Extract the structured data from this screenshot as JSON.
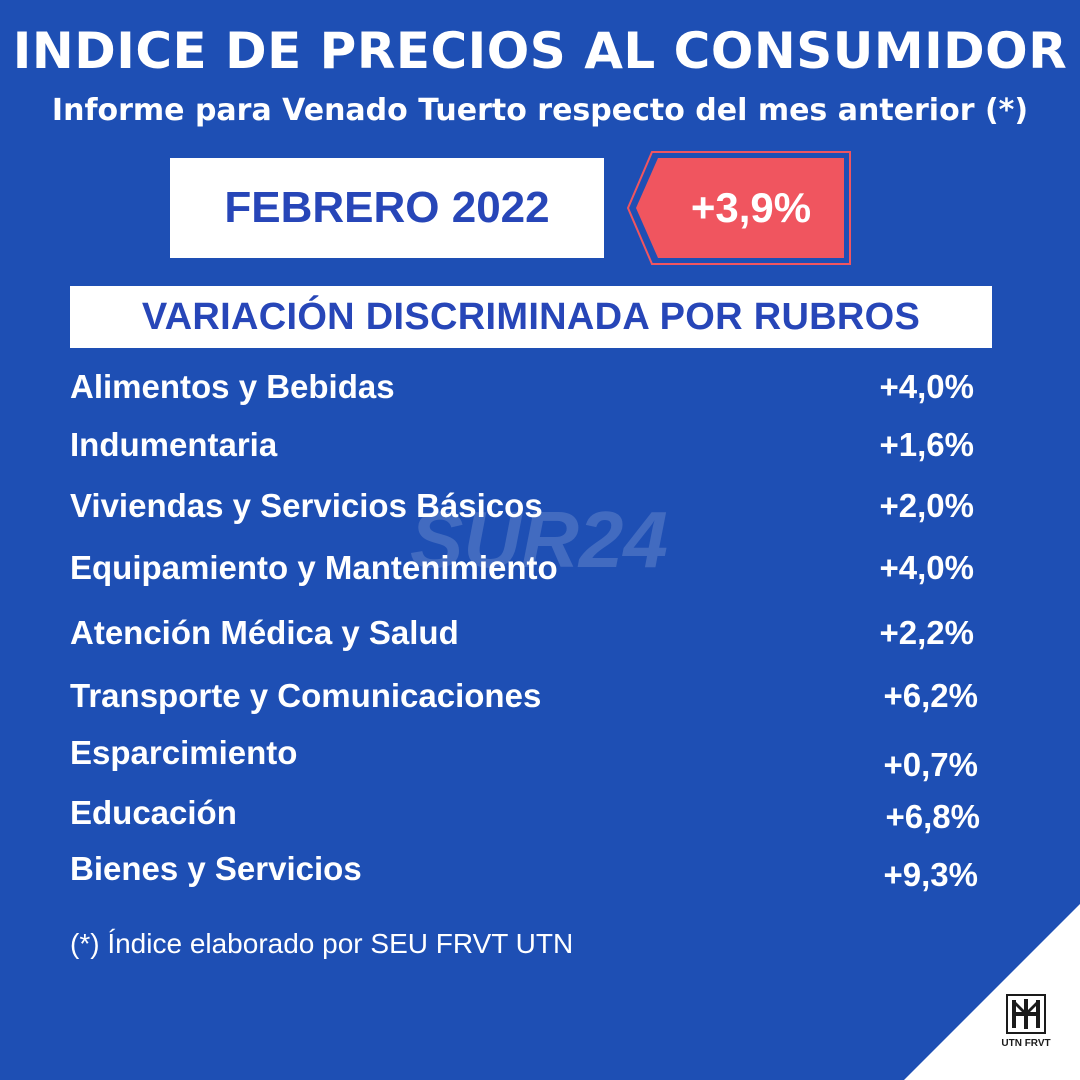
{
  "header": {
    "title": "INDICE DE PRECIOS AL CONSUMIDOR",
    "subtitle": "Informe para Venado Tuerto respecto del mes anterior (*)"
  },
  "period": {
    "month_label": "FEBRERO 2022",
    "total_variation": "+3,9%"
  },
  "section_title": "VARIACIÓN DISCRIMINADA POR RUBROS",
  "items": [
    {
      "label": "Alimentos y Bebidas",
      "value": "+4,0%"
    },
    {
      "label": "Indumentaria",
      "value": "+1,6%"
    },
    {
      "label": "Viviendas y Servicios Básicos",
      "value": "+2,0%"
    },
    {
      "label": "Equipamiento y Mantenimiento",
      "value": "+4,0%"
    },
    {
      "label": "Atención Médica y Salud",
      "value": "+2,2%"
    },
    {
      "label": "Transporte y Comunicaciones",
      "value": "+6,2%"
    },
    {
      "label": "Esparcimiento",
      "value": "+0,7%"
    },
    {
      "label": "Educación",
      "value": "+6,8%"
    },
    {
      "label": "Bienes y Servicios",
      "value": "+9,3%"
    }
  ],
  "footnote": "(*) Índice elaborado por SEU FRVT UTN",
  "watermark": "SUR24",
  "logo": {
    "text": "UTN FRVT"
  },
  "colors": {
    "background": "#1e4fb4",
    "accent_blue": "#2746b8",
    "tag_red": "#f0555f",
    "white": "#ffffff"
  }
}
